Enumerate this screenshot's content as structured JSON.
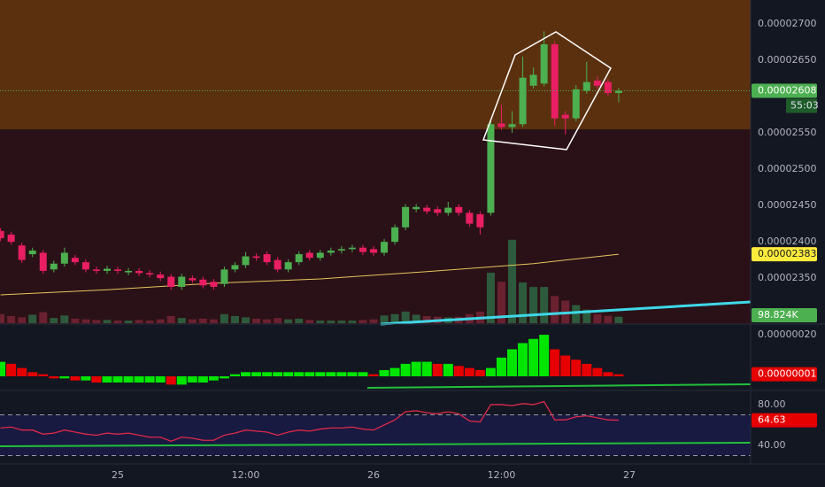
{
  "chart_data": {
    "type": "candlestick",
    "categories": [
      null,
      null,
      null,
      null,
      null,
      null,
      null,
      null,
      null,
      null,
      null,
      "25",
      null,
      null,
      null,
      null,
      null,
      null,
      null,
      null,
      null,
      null,
      null,
      "12:00",
      null,
      null,
      null,
      null,
      null,
      null,
      null,
      null,
      null,
      null,
      null,
      "26",
      null,
      null,
      null,
      null,
      null,
      null,
      null,
      null,
      null,
      null,
      null,
      "12:00",
      null,
      null,
      null,
      null,
      null,
      null,
      null,
      null,
      null,
      null,
      null,
      "27"
    ],
    "open": [
      2.415e-05,
      2.41e-05,
      2.395e-05,
      2.383e-05,
      2.385e-05,
      2.362e-05,
      2.37e-05,
      2.378e-05,
      2.372e-05,
      2.362e-05,
      2.36e-05,
      2.362e-05,
      2.358e-05,
      2.36e-05,
      2.357e-05,
      2.355e-05,
      2.352e-05,
      2.338e-05,
      2.35e-05,
      2.348e-05,
      2.345e-05,
      2.342e-05,
      2.362e-05,
      2.368e-05,
      2.38e-05,
      2.383e-05,
      2.375e-05,
      2.362e-05,
      2.372e-05,
      2.385e-05,
      2.378e-05,
      2.385e-05,
      2.388e-05,
      2.39e-05,
      2.392e-05,
      2.39e-05,
      2.385e-05,
      2.4e-05,
      2.42e-05,
      2.445e-05,
      2.447e-05,
      2.445e-05,
      2.44e-05,
      2.448e-05,
      2.44e-05,
      2.438e-05,
      2.44e-05,
      2.563e-05,
      2.558e-05,
      2.562e-05,
      2.615e-05,
      2.618e-05,
      2.672e-05,
      2.575e-05,
      2.57e-05,
      2.608e-05,
      2.622e-05,
      2.62e-05,
      2.605e-05,
      null
    ],
    "high": [
      2.419e-05,
      2.414e-05,
      2.399e-05,
      2.392e-05,
      2.389e-05,
      2.374e-05,
      2.392e-05,
      2.382e-05,
      2.376e-05,
      2.366e-05,
      2.367e-05,
      2.366e-05,
      2.364e-05,
      2.364e-05,
      2.361e-05,
      2.359e-05,
      2.356e-05,
      2.356e-05,
      2.354e-05,
      2.352e-05,
      2.349e-05,
      2.366e-05,
      2.372e-05,
      2.386e-05,
      2.384e-05,
      2.387e-05,
      2.379e-05,
      2.376e-05,
      2.387e-05,
      2.389e-05,
      2.389e-05,
      2.392e-05,
      2.394e-05,
      2.396e-05,
      2.396e-05,
      2.394e-05,
      2.404e-05,
      2.424e-05,
      2.452e-05,
      2.452e-05,
      2.451e-05,
      2.449e-05,
      2.455e-05,
      2.452e-05,
      2.444e-05,
      2.442e-05,
      2.568e-05,
      2.589e-05,
      2.58e-05,
      2.655e-05,
      2.64e-05,
      2.69e-05,
      2.676e-05,
      2.58e-05,
      2.616e-05,
      2.648e-05,
      2.628e-05,
      2.624e-05,
      2.612e-05,
      null
    ],
    "low": [
      2.401e-05,
      2.396e-05,
      2.371e-05,
      2.379e-05,
      2.356e-05,
      2.358e-05,
      2.366e-05,
      2.368e-05,
      2.358e-05,
      2.356e-05,
      2.356e-05,
      2.356e-05,
      2.354e-05,
      2.353e-05,
      2.351e-05,
      2.346e-05,
      2.334e-05,
      2.334e-05,
      2.343e-05,
      2.336e-05,
      2.334e-05,
      2.338e-05,
      2.358e-05,
      2.364e-05,
      2.374e-05,
      2.368e-05,
      2.358e-05,
      2.358e-05,
      2.368e-05,
      2.374e-05,
      2.374e-05,
      2.381e-05,
      2.384e-05,
      2.386e-05,
      2.382e-05,
      2.381e-05,
      2.381e-05,
      2.396e-05,
      2.416e-05,
      2.441e-05,
      2.438e-05,
      2.436e-05,
      2.436e-05,
      2.436e-05,
      2.421e-05,
      2.41e-05,
      2.436e-05,
      2.554e-05,
      2.55e-05,
      2.558e-05,
      2.611e-05,
      2.614e-05,
      2.56e-05,
      2.548e-05,
      2.566e-05,
      2.604e-05,
      2.611e-05,
      2.601e-05,
      2.592e-05,
      null
    ],
    "close": [
      2.405e-05,
      2.4e-05,
      2.375e-05,
      2.388e-05,
      2.36e-05,
      2.37e-05,
      2.385e-05,
      2.372e-05,
      2.362e-05,
      2.36e-05,
      2.363e-05,
      2.36e-05,
      2.36e-05,
      2.357e-05,
      2.355e-05,
      2.35e-05,
      2.338e-05,
      2.352e-05,
      2.347e-05,
      2.34e-05,
      2.338e-05,
      2.362e-05,
      2.368e-05,
      2.38e-05,
      2.378e-05,
      2.372e-05,
      2.362e-05,
      2.372e-05,
      2.383e-05,
      2.378e-05,
      2.385e-05,
      2.388e-05,
      2.39e-05,
      2.392e-05,
      2.386e-05,
      2.385e-05,
      2.4e-05,
      2.42e-05,
      2.448e-05,
      2.448e-05,
      2.442e-05,
      2.44e-05,
      2.447e-05,
      2.44e-05,
      2.425e-05,
      2.42e-05,
      2.562e-05,
      2.558e-05,
      2.562e-05,
      2.626e-05,
      2.63e-05,
      2.672e-05,
      2.57e-05,
      2.57e-05,
      2.61e-05,
      2.62e-05,
      2.615e-05,
      2.605e-05,
      2.608e-05,
      null
    ],
    "up_color": "#4caf50",
    "down_color": "#e91e63",
    "ylim": [
      2.288e-05,
      2.733e-05
    ],
    "yticks": [
      {
        "value": 2.7e-05,
        "label": "0.00002700"
      },
      {
        "value": 2.65e-05,
        "label": "0.00002650"
      },
      {
        "value": 2.55e-05,
        "label": "0.00002550"
      },
      {
        "value": 2.5e-05,
        "label": "0.00002500"
      },
      {
        "value": 2.45e-05,
        "label": "0.00002450"
      },
      {
        "value": 2.4e-05,
        "label": "0.00002400"
      },
      {
        "value": 2.35e-05,
        "label": "0.00002350"
      }
    ],
    "grid": false,
    "last_price_label": "0.00002608",
    "countdown": "55:03",
    "ma": {
      "x": [
        0,
        10,
        20,
        30,
        40,
        50,
        58
      ],
      "values": [
        2.327e-05,
        2.334e-05,
        2.343e-05,
        2.349e-05,
        2.359e-05,
        2.37e-05,
        2.383e-05
      ],
      "color": "#e8c35e",
      "last_label": "0.00002383"
    },
    "volume": {
      "values": [
        140,
        110,
        90,
        130,
        170,
        80,
        120,
        70,
        60,
        50,
        50,
        40,
        40,
        50,
        40,
        60,
        110,
        80,
        60,
        70,
        60,
        140,
        110,
        90,
        70,
        60,
        80,
        60,
        70,
        50,
        40,
        40,
        40,
        40,
        50,
        60,
        120,
        140,
        180,
        130,
        110,
        100,
        90,
        100,
        140,
        180,
        780,
        640,
        1290,
        630,
        560,
        560,
        420,
        350,
        280,
        210,
        140,
        112,
        98.824,
        null
      ],
      "lim": [
        0,
        1300
      ],
      "last_label": "98.824K",
      "up_color": "#2d5a3c",
      "down_color": "#6a2130"
    },
    "macd": {
      "values": [
        7e-08,
        6e-08,
        4e-08,
        2e-08,
        1e-08,
        -1e-08,
        -1e-08,
        -2e-08,
        -2e-08,
        -3e-08,
        -3e-08,
        -3e-08,
        -3e-08,
        -3e-08,
        -3e-08,
        -3e-08,
        -4e-08,
        -4e-08,
        -3e-08,
        -3e-08,
        -2e-08,
        -1e-08,
        1e-08,
        2e-08,
        2e-08,
        2e-08,
        2e-08,
        2e-08,
        2e-08,
        2e-08,
        2e-08,
        2e-08,
        2e-08,
        2e-08,
        2e-08,
        1e-08,
        3e-08,
        4e-08,
        6e-08,
        7e-08,
        7e-08,
        6e-08,
        6e-08,
        5e-08,
        4e-08,
        3e-08,
        4e-08,
        9e-08,
        1.3e-07,
        1.6e-07,
        1.8e-07,
        2e-07,
        1.3e-07,
        1e-07,
        8e-08,
        6e-08,
        4e-08,
        2e-08,
        1e-08,
        null
      ],
      "ylim": [
        -6.4e-08,
        2.43e-07
      ],
      "yticks": [
        {
          "value": 2e-07,
          "label": "0.00000020"
        }
      ],
      "last_label": "0.00000001",
      "up_color": "#00e600",
      "down_color": "#e60000"
    },
    "rsi": {
      "values": [
        57,
        58,
        55,
        55,
        51,
        52,
        55,
        53,
        51,
        50,
        52,
        51,
        52,
        50,
        48,
        48,
        44,
        48,
        47,
        45,
        45,
        50,
        52,
        55,
        54,
        53,
        50,
        53,
        55,
        54,
        56,
        57,
        57,
        58,
        56,
        55,
        60,
        65,
        73,
        74,
        72,
        71,
        73,
        71,
        64,
        63,
        80,
        80,
        79,
        81,
        80,
        83,
        65,
        65,
        68,
        69,
        67,
        65,
        64.63,
        null
      ],
      "ylim": [
        16.5,
        93
      ],
      "yticks": [
        {
          "value": 80,
          "label": "80.00"
        },
        {
          "value": 40,
          "label": "40.00"
        }
      ],
      "bands": [
        70,
        30
      ],
      "color": "#e0294a",
      "last_label": "64.63"
    }
  }
}
